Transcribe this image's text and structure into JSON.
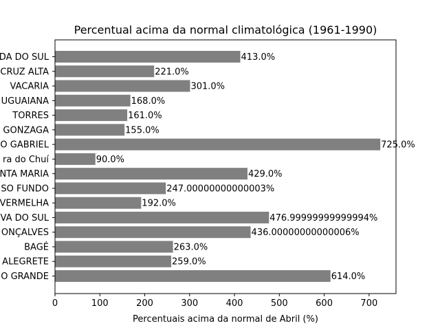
{
  "chart_data": {
    "type": "bar",
    "orientation": "horizontal",
    "title": "Percentual acima da normal climatológica (1961-1990)",
    "xlabel": "Percentuais acima da normal de Abril (%)",
    "ylabel": "",
    "xlim": [
      0,
      760
    ],
    "xticks": [
      0,
      100,
      200,
      300,
      400,
      500,
      600,
      700
    ],
    "grid": false,
    "bar_color": "#808080",
    "categories": [
      "DA DO SUL",
      "CRUZ ALTA",
      "VACARIA",
      "UGUAIANA",
      "TORRES",
      "GONZAGA",
      "O GABRIEL",
      "ra do Chuí",
      "NTA MARIA",
      "SO FUNDO",
      "VERMELHA",
      "VA DO SUL",
      "ONÇALVES",
      "BAGÉ",
      "ALEGRETE",
      "O GRANDE"
    ],
    "values": [
      413.0,
      221.0,
      301.0,
      168.0,
      161.0,
      155.0,
      725.0,
      90.0,
      429.0,
      247.00000000000003,
      192.0,
      476.99999999999994,
      436.00000000000006,
      263.0,
      259.0,
      614.0
    ],
    "labels": [
      "413.0%",
      "221.0%",
      "301.0%",
      "168.0%",
      "161.0%",
      "155.0%",
      "725.0%",
      "90.0%",
      "429.0%",
      "247.00000000000003%",
      "192.0%",
      "476.99999999999994%",
      "436.00000000000006%",
      "263.0%",
      "259.0%",
      "614.0%"
    ]
  }
}
